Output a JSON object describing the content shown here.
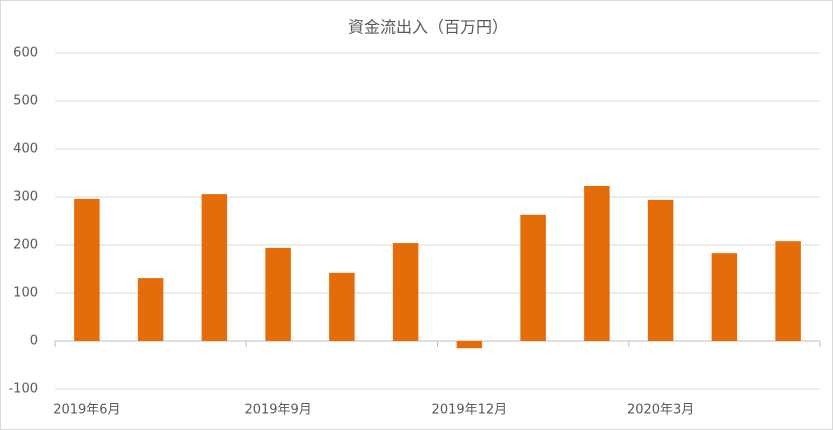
{
  "chart_data": {
    "type": "bar",
    "title": "資金流出入（百万円）",
    "categories": [
      "2019年6月",
      null,
      null,
      "2019年9月",
      null,
      null,
      "2019年12月",
      null,
      null,
      "2020年3月",
      null,
      null
    ],
    "values": [
      296,
      131,
      306,
      194,
      142,
      204,
      -15,
      263,
      323,
      294,
      183,
      208
    ],
    "color": "#e46c0a",
    "ylim": [
      -100,
      600
    ],
    "yticks": [
      -100,
      0,
      100,
      200,
      300,
      400,
      500,
      600
    ],
    "grid": true
  }
}
